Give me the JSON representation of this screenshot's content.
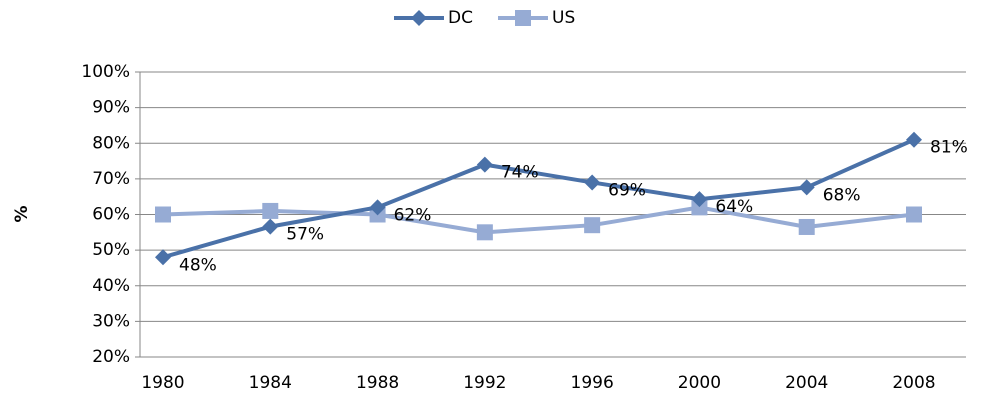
{
  "chart_data": {
    "type": "line",
    "y_label": "%",
    "categories": [
      "1980",
      "1984",
      "1988",
      "1992",
      "1996",
      "2000",
      "2004",
      "2008"
    ],
    "series": [
      {
        "name": "DC",
        "color": "#4a71a8",
        "marker": "diamond",
        "values": [
          48,
          56.6,
          62,
          74,
          69,
          64.3,
          67.6,
          81
        ],
        "value_labels": [
          "48%",
          "57%",
          "62%",
          "74%",
          "69%",
          "64%",
          "68%",
          "81%"
        ]
      },
      {
        "name": "US",
        "color": "#96abd4",
        "marker": "square",
        "values": [
          60,
          61,
          60,
          55,
          57,
          62,
          56.5,
          60
        ]
      }
    ],
    "ylim": [
      20,
      100
    ],
    "yticks": [
      {
        "value": 20,
        "label": "20%"
      },
      {
        "value": 30,
        "label": "30%"
      },
      {
        "value": 40,
        "label": "40%"
      },
      {
        "value": 50,
        "label": "50%"
      },
      {
        "value": 60,
        "label": "60%"
      },
      {
        "value": 70,
        "label": "70%"
      },
      {
        "value": 80,
        "label": "80%"
      },
      {
        "value": 90,
        "label": "90%"
      },
      {
        "value": 100,
        "label": "100%"
      }
    ],
    "grid": true,
    "legend": "top"
  }
}
